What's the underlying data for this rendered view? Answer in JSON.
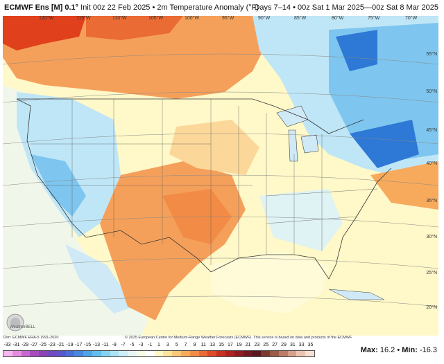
{
  "header": {
    "title_model": "ECMWF Ens [M] 0.1°",
    "title_rest": " Init 00z 22 Feb 2025 • 2m Temperature Anomaly (°F)",
    "valid_range": "Days 7–14 • 00z Sat 1 Mar 2025—00z Sat 8 Mar 2025"
  },
  "map": {
    "lon_labels": [
      "120°W",
      "115°W",
      "110°W",
      "105°W",
      "100°W",
      "95°W",
      "90°W",
      "85°W",
      "80°W",
      "75°W",
      "70°W"
    ],
    "lat_labels": [
      "55°N",
      "50°N",
      "45°N",
      "40°N",
      "35°N",
      "30°N",
      "25°N",
      "20°N"
    ],
    "colors": {
      "warm_strong": "#e0401c",
      "warm": "#f5a05a",
      "warm_light": "#fbd79a",
      "neutral": "#fff8c8",
      "cool_light": "#bfe6f7",
      "cool": "#7ec6ef",
      "cool_strong": "#2e78d6",
      "ocean_pale": "#fffbd8"
    }
  },
  "footer": {
    "clim": "Clim: ECMWF ERA-5 1991-2020",
    "copyright": "© 2025 European Centre for Medium-Range Weather Forecasts (ECMWF). This service is based on data and products of the ECMWF.",
    "logo_text": "WeatherBELL",
    "max_label": "Max:",
    "max_value": "16.2",
    "min_label": "Min:",
    "min_value": "-16.3"
  },
  "colorbar": {
    "ticks": [
      "-33",
      "-31",
      "-29",
      "-27",
      "-25",
      "-23",
      "-21",
      "-19",
      "-17",
      "-15",
      "-13",
      "-11",
      "-9",
      "-7",
      "-5",
      "-3",
      "-1",
      "1",
      "3",
      "5",
      "7",
      "9",
      "11",
      "13",
      "15",
      "17",
      "19",
      "21",
      "23",
      "25",
      "27",
      "29",
      "31",
      "33",
      "35"
    ],
    "colors": [
      "#f7b7f0",
      "#e48de0",
      "#c966d0",
      "#a84bbe",
      "#8a44b8",
      "#7149c0",
      "#5a57cc",
      "#4a6fd8",
      "#4888e0",
      "#4fa3e8",
      "#62bdee",
      "#83d2f2",
      "#a9e3f5",
      "#cdeef6",
      "#e6f7f3",
      "#f5fbe4",
      "#ffffff",
      "#fff7c4",
      "#fde49b",
      "#fbc877",
      "#f8aa5c",
      "#f28b45",
      "#ea6b34",
      "#dc4a28",
      "#c73022",
      "#ad2120",
      "#8f1b22",
      "#721824",
      "#5c1620",
      "#7a3a30",
      "#9c5a48",
      "#bc7c66",
      "#d8a08a",
      "#ecc4b2",
      "#f6e0d6"
    ]
  }
}
